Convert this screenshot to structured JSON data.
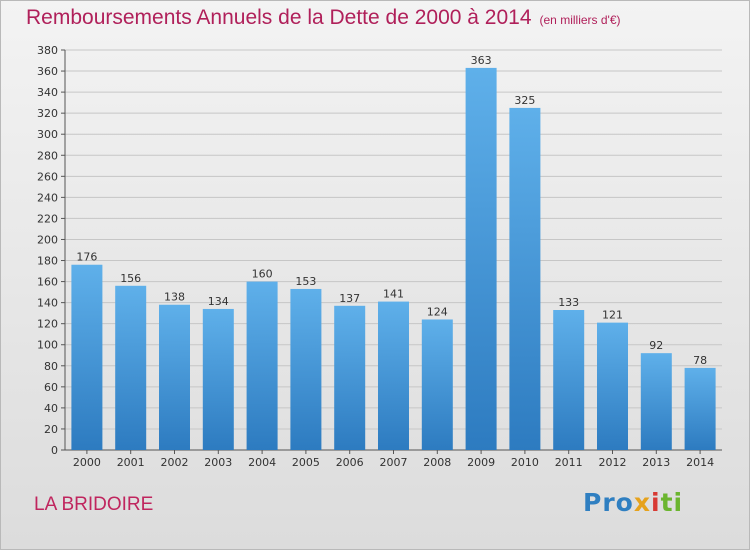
{
  "chart_data": {
    "type": "bar",
    "title": "Remboursements Annuels de la Dette de 2000 à 2014",
    "subtitle": "(en milliers d'€)",
    "categories": [
      "2000",
      "2001",
      "2002",
      "2003",
      "2004",
      "2005",
      "2006",
      "2007",
      "2008",
      "2009",
      "2010",
      "2011",
      "2012",
      "2013",
      "2014"
    ],
    "values": [
      176,
      156,
      138,
      134,
      160,
      153,
      137,
      141,
      124,
      363,
      325,
      133,
      121,
      92,
      78
    ],
    "ylim": [
      0,
      380
    ],
    "ytick_step": 20,
    "grid": true,
    "bar_color": "#4e9fdf"
  },
  "commune": "LA BRIDOIRE",
  "logo": {
    "text": "Proxiti",
    "colors": [
      "#2f7fc1",
      "#e6a21c",
      "#d83a33",
      "#6bb52f"
    ]
  }
}
